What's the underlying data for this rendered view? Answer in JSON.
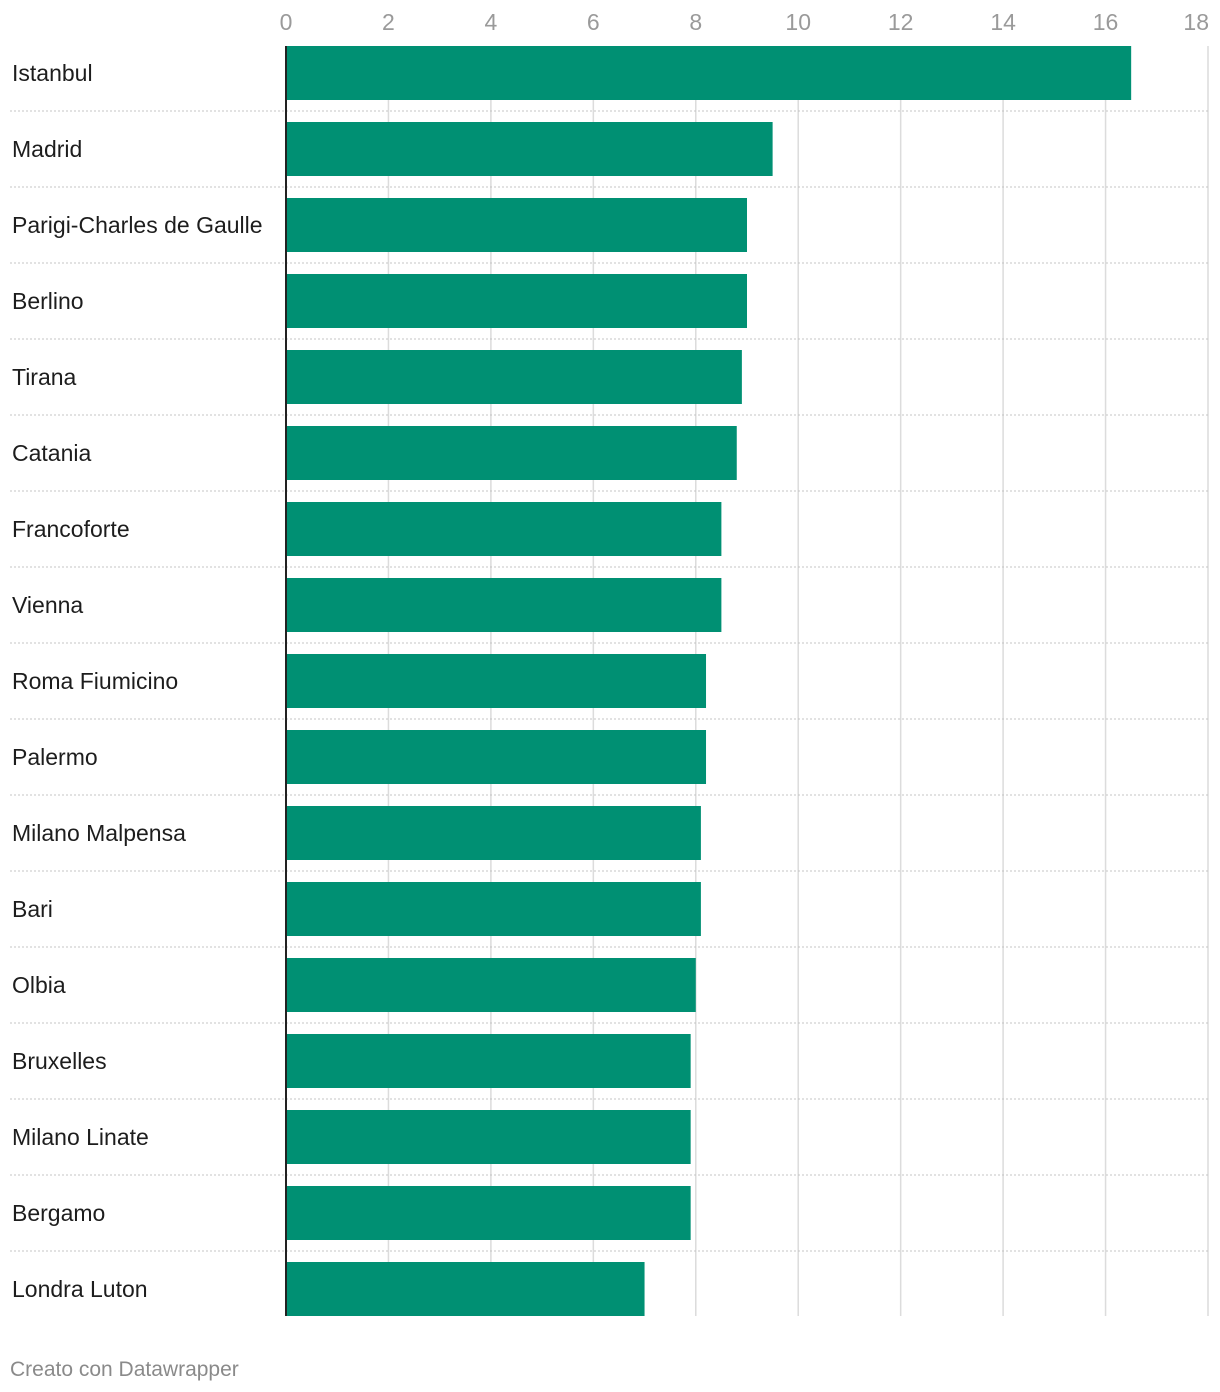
{
  "chart_data": {
    "type": "bar",
    "orientation": "horizontal",
    "categories": [
      "Istanbul",
      "Madrid",
      "Parigi-Charles de Gaulle",
      "Berlino",
      "Tirana",
      "Catania",
      "Francoforte",
      "Vienna",
      "Roma Fiumicino",
      "Palermo",
      "Milano Malpensa",
      "Bari",
      "Olbia",
      "Bruxelles",
      "Milano Linate",
      "Bergamo",
      "Londra Luton"
    ],
    "values": [
      16.5,
      9.5,
      9.0,
      9.0,
      8.9,
      8.8,
      8.5,
      8.5,
      8.2,
      8.2,
      8.1,
      8.1,
      8.0,
      7.9,
      7.9,
      7.9,
      7.0
    ],
    "xlim": [
      0,
      18
    ],
    "xticks": [
      0,
      2,
      4,
      6,
      8,
      10,
      12,
      14,
      16,
      18
    ],
    "bar_color": "#009073",
    "gridlines": true,
    "title": "",
    "xlabel": "",
    "ylabel": ""
  },
  "footer": {
    "credit": "Creato con Datawrapper"
  }
}
